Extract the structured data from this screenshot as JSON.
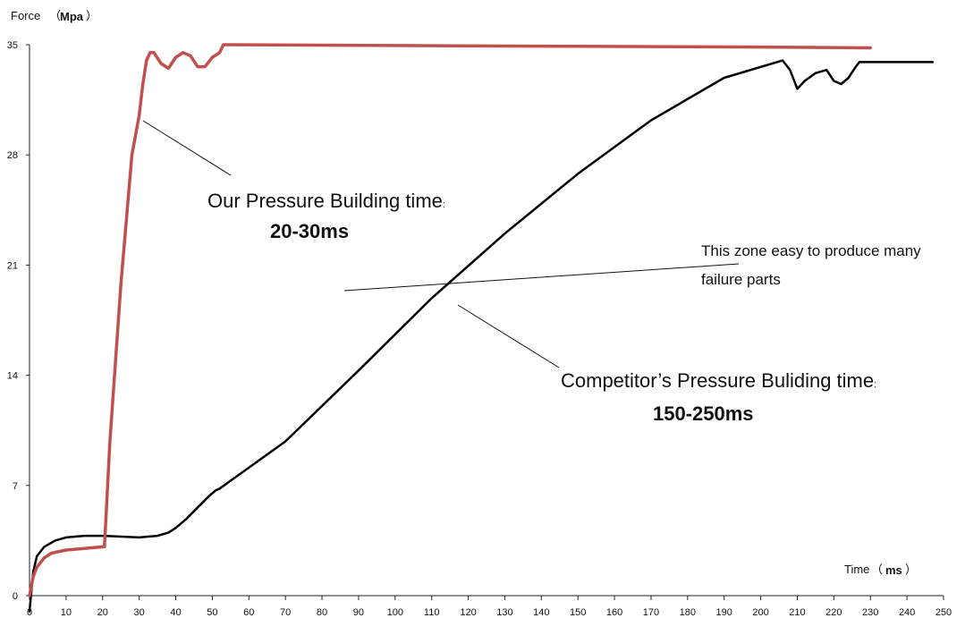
{
  "chart_data": {
    "type": "line",
    "ylabel": "Force",
    "ylabel_unit": "Mpa",
    "xlabel": "Time",
    "xlabel_unit": "ms",
    "xlim": [
      0,
      250
    ],
    "ylim": [
      0,
      35
    ],
    "x_ticks": [
      "0",
      "10",
      "20",
      "30",
      "40",
      "50",
      "60",
      "70",
      "80",
      "90",
      "100",
      "110",
      "120",
      "130",
      "140",
      "150",
      "160",
      "170",
      "180",
      "190",
      "200",
      "210",
      "220",
      "230",
      "240",
      "250"
    ],
    "y_ticks": [
      "0",
      "7",
      "14",
      "21",
      "28",
      "35"
    ],
    "grid": false,
    "legend": "none",
    "series": [
      {
        "color": "#c0504d",
        "x": [
          0,
          1,
          2,
          4,
          6,
          10,
          15,
          20,
          20.5,
          22,
          25,
          28,
          30,
          31,
          32,
          33,
          34,
          36,
          38,
          40,
          42,
          44,
          46,
          48,
          50,
          52,
          53,
          100,
          150,
          200,
          230
        ],
        "y": [
          0,
          1.2,
          1.8,
          2.4,
          2.7,
          2.9,
          3.0,
          3.1,
          3.1,
          9.8,
          19.8,
          28.0,
          30.5,
          32.5,
          34.0,
          34.5,
          34.5,
          33.8,
          33.5,
          34.2,
          34.5,
          34.3,
          33.6,
          33.6,
          34.2,
          34.5,
          35.0,
          34.95,
          34.9,
          34.85,
          34.8
        ]
      },
      {
        "color": "#000000",
        "x": [
          0,
          1,
          2,
          4,
          7,
          10,
          15,
          20,
          25,
          30,
          35,
          38,
          40,
          43,
          46,
          49,
          51,
          52,
          70,
          90,
          110,
          130,
          150,
          170,
          190,
          206,
          208,
          210,
          212,
          215,
          218,
          220,
          222,
          224,
          226,
          227,
          228,
          240,
          247
        ],
        "y": [
          -1,
          1.5,
          2.5,
          3.1,
          3.5,
          3.7,
          3.8,
          3.8,
          3.75,
          3.7,
          3.8,
          4.0,
          4.3,
          4.9,
          5.6,
          6.3,
          6.7,
          6.8,
          9.8,
          14.3,
          18.9,
          23.0,
          26.8,
          30.2,
          32.9,
          34.0,
          33.4,
          32.2,
          32.7,
          33.2,
          33.4,
          32.7,
          32.5,
          32.9,
          33.6,
          33.9,
          33.9,
          33.9,
          33.9
        ]
      }
    ],
    "annotations": [
      {
        "text": "Our Pressure Building time",
        "value": "20-30ms"
      },
      {
        "text": "This zone easy to produce many failure parts"
      },
      {
        "text": "Competitor’s Pressure Buliding time",
        "value": "150-250ms"
      }
    ]
  }
}
